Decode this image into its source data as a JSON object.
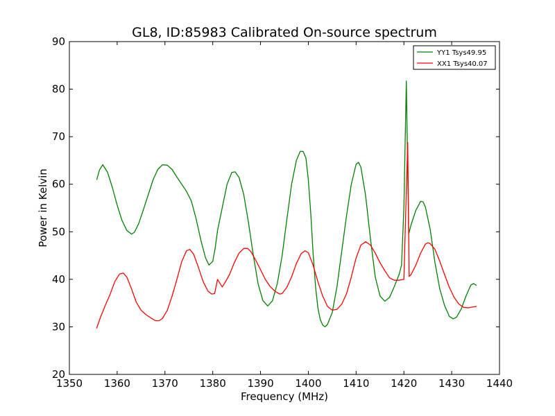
{
  "chart_data": {
    "type": "line",
    "title": "GL8, ID:85983 Calibrated On-source spectrum",
    "xlabel": "Frequency (MHz)",
    "ylabel": "Power in Kelvin",
    "xlim": [
      1350,
      1440
    ],
    "ylim": [
      20,
      90
    ],
    "xticks": [
      "1350",
      "1360",
      "1370",
      "1380",
      "1390",
      "1400",
      "1410",
      "1420",
      "1430",
      "1440"
    ],
    "yticks": [
      "20",
      "30",
      "40",
      "50",
      "60",
      "70",
      "80",
      "90"
    ],
    "grid": false,
    "legend_position": "top-right",
    "series": [
      {
        "name": "YY1 Tsys49.95",
        "color": "#008000",
        "points": [
          [
            1355.7,
            60.9
          ],
          [
            1356.3,
            63.0
          ],
          [
            1357.0,
            64.1
          ],
          [
            1358.0,
            62.5
          ],
          [
            1359.0,
            59.3
          ],
          [
            1360.0,
            55.6
          ],
          [
            1361.0,
            52.4
          ],
          [
            1362.0,
            50.3
          ],
          [
            1363.0,
            49.5
          ],
          [
            1363.6,
            49.9
          ],
          [
            1364.5,
            51.7
          ],
          [
            1365.5,
            54.7
          ],
          [
            1366.5,
            57.8
          ],
          [
            1367.5,
            60.9
          ],
          [
            1368.5,
            63.1
          ],
          [
            1369.5,
            64.1
          ],
          [
            1370.5,
            64.0
          ],
          [
            1371.5,
            63.1
          ],
          [
            1372.5,
            61.5
          ],
          [
            1373.5,
            60.0
          ],
          [
            1374.5,
            58.5
          ],
          [
            1375.5,
            56.5
          ],
          [
            1376.5,
            52.8
          ],
          [
            1377.5,
            48.3
          ],
          [
            1378.5,
            44.5
          ],
          [
            1379.2,
            43.0
          ],
          [
            1380.0,
            43.8
          ],
          [
            1380.5,
            46.5
          ],
          [
            1381.0,
            50.3
          ],
          [
            1382.0,
            55.1
          ],
          [
            1383.0,
            60.0
          ],
          [
            1384.0,
            62.5
          ],
          [
            1384.7,
            62.6
          ],
          [
            1385.5,
            61.4
          ],
          [
            1386.5,
            57.8
          ],
          [
            1387.5,
            51.8
          ],
          [
            1388.5,
            45.0
          ],
          [
            1389.5,
            39.0
          ],
          [
            1390.5,
            35.5
          ],
          [
            1391.5,
            34.4
          ],
          [
            1392.5,
            35.5
          ],
          [
            1393.5,
            39.1
          ],
          [
            1394.5,
            44.9
          ],
          [
            1395.5,
            52.5
          ],
          [
            1396.5,
            60.0
          ],
          [
            1397.5,
            65.0
          ],
          [
            1398.3,
            66.9
          ],
          [
            1398.9,
            66.9
          ],
          [
            1399.5,
            65.5
          ],
          [
            1400.0,
            61.0
          ],
          [
            1400.5,
            54.0
          ],
          [
            1401.0,
            45.5
          ],
          [
            1401.5,
            38.5
          ],
          [
            1402.0,
            34.0
          ],
          [
            1402.5,
            31.5
          ],
          [
            1403.0,
            30.4
          ],
          [
            1403.5,
            30.0
          ],
          [
            1404.0,
            30.5
          ],
          [
            1405.0,
            33.0
          ],
          [
            1406.0,
            38.5
          ],
          [
            1407.0,
            46.0
          ],
          [
            1408.0,
            53.5
          ],
          [
            1409.0,
            60.0
          ],
          [
            1410.0,
            64.2
          ],
          [
            1410.5,
            64.6
          ],
          [
            1411.0,
            63.6
          ],
          [
            1412.0,
            57.5
          ],
          [
            1413.0,
            48.5
          ],
          [
            1414.0,
            40.5
          ],
          [
            1415.0,
            36.5
          ],
          [
            1416.0,
            35.4
          ],
          [
            1417.0,
            36.2
          ],
          [
            1418.0,
            38.5
          ],
          [
            1419.0,
            41.0
          ],
          [
            1419.5,
            43.0
          ],
          [
            1420.0,
            55.0
          ],
          [
            1420.5,
            81.7
          ],
          [
            1421.0,
            49.5
          ],
          [
            1421.5,
            51.5
          ],
          [
            1422.5,
            54.5
          ],
          [
            1423.5,
            56.4
          ],
          [
            1424.0,
            56.3
          ],
          [
            1424.5,
            55.2
          ],
          [
            1425.5,
            50.5
          ],
          [
            1426.5,
            43.5
          ],
          [
            1427.5,
            38.0
          ],
          [
            1428.5,
            34.5
          ],
          [
            1429.5,
            32.2
          ],
          [
            1430.3,
            31.7
          ],
          [
            1431.0,
            32.0
          ],
          [
            1432.0,
            33.8
          ],
          [
            1433.0,
            36.5
          ],
          [
            1434.0,
            38.8
          ],
          [
            1434.6,
            39.1
          ],
          [
            1435.2,
            38.7
          ]
        ]
      },
      {
        "name": "XX1 Tsys40.07",
        "color": "#ff0000",
        "points": [
          [
            1355.7,
            29.7
          ],
          [
            1356.5,
            32.0
          ],
          [
            1357.5,
            34.5
          ],
          [
            1358.5,
            36.8
          ],
          [
            1359.5,
            39.5
          ],
          [
            1360.5,
            41.1
          ],
          [
            1361.3,
            41.3
          ],
          [
            1362.0,
            40.5
          ],
          [
            1363.0,
            38.0
          ],
          [
            1364.0,
            35.2
          ],
          [
            1365.0,
            33.5
          ],
          [
            1366.0,
            32.6
          ],
          [
            1367.0,
            31.9
          ],
          [
            1368.0,
            31.3
          ],
          [
            1368.8,
            31.3
          ],
          [
            1369.5,
            31.8
          ],
          [
            1370.5,
            33.5
          ],
          [
            1371.5,
            36.5
          ],
          [
            1372.5,
            40.0
          ],
          [
            1373.5,
            43.7
          ],
          [
            1374.5,
            46.0
          ],
          [
            1375.2,
            46.3
          ],
          [
            1376.0,
            45.3
          ],
          [
            1377.0,
            42.5
          ],
          [
            1378.0,
            39.5
          ],
          [
            1379.0,
            37.5
          ],
          [
            1379.8,
            36.9
          ],
          [
            1380.4,
            37.0
          ],
          [
            1381.0,
            40.0
          ],
          [
            1381.6,
            39.0
          ],
          [
            1382.0,
            38.4
          ],
          [
            1382.5,
            39.2
          ],
          [
            1383.5,
            41.0
          ],
          [
            1384.5,
            43.5
          ],
          [
            1385.5,
            45.5
          ],
          [
            1386.5,
            46.5
          ],
          [
            1387.3,
            46.5
          ],
          [
            1388.0,
            45.8
          ],
          [
            1389.0,
            44.0
          ],
          [
            1390.0,
            42.0
          ],
          [
            1391.0,
            40.0
          ],
          [
            1392.0,
            38.5
          ],
          [
            1393.0,
            37.5
          ],
          [
            1394.0,
            36.9
          ],
          [
            1394.5,
            37.0
          ],
          [
            1395.5,
            38.3
          ],
          [
            1396.5,
            40.5
          ],
          [
            1397.5,
            43.3
          ],
          [
            1398.5,
            45.4
          ],
          [
            1399.3,
            46.0
          ],
          [
            1400.0,
            45.6
          ],
          [
            1401.0,
            43.0
          ],
          [
            1402.0,
            39.5
          ],
          [
            1403.0,
            36.5
          ],
          [
            1404.0,
            34.3
          ],
          [
            1405.0,
            33.5
          ],
          [
            1406.0,
            33.7
          ],
          [
            1407.0,
            34.8
          ],
          [
            1408.0,
            37.0
          ],
          [
            1409.0,
            40.5
          ],
          [
            1410.0,
            44.5
          ],
          [
            1411.0,
            47.2
          ],
          [
            1412.0,
            47.9
          ],
          [
            1413.0,
            47.2
          ],
          [
            1414.0,
            45.5
          ],
          [
            1415.0,
            43.5
          ],
          [
            1416.0,
            41.8
          ],
          [
            1417.0,
            40.3
          ],
          [
            1418.0,
            39.8
          ],
          [
            1419.0,
            39.8
          ],
          [
            1420.0,
            40.0
          ],
          [
            1420.4,
            55.0
          ],
          [
            1420.8,
            68.8
          ],
          [
            1421.1,
            40.6
          ],
          [
            1421.5,
            41.0
          ],
          [
            1422.5,
            43.0
          ],
          [
            1423.5,
            45.5
          ],
          [
            1424.5,
            47.4
          ],
          [
            1425.0,
            47.7
          ],
          [
            1425.5,
            47.5
          ],
          [
            1426.5,
            46.3
          ],
          [
            1427.5,
            43.8
          ],
          [
            1428.5,
            41.0
          ],
          [
            1429.5,
            38.3
          ],
          [
            1430.5,
            36.2
          ],
          [
            1431.5,
            34.8
          ],
          [
            1432.5,
            34.1
          ],
          [
            1433.5,
            34.0
          ],
          [
            1434.5,
            34.2
          ],
          [
            1435.2,
            34.3
          ]
        ]
      }
    ]
  }
}
